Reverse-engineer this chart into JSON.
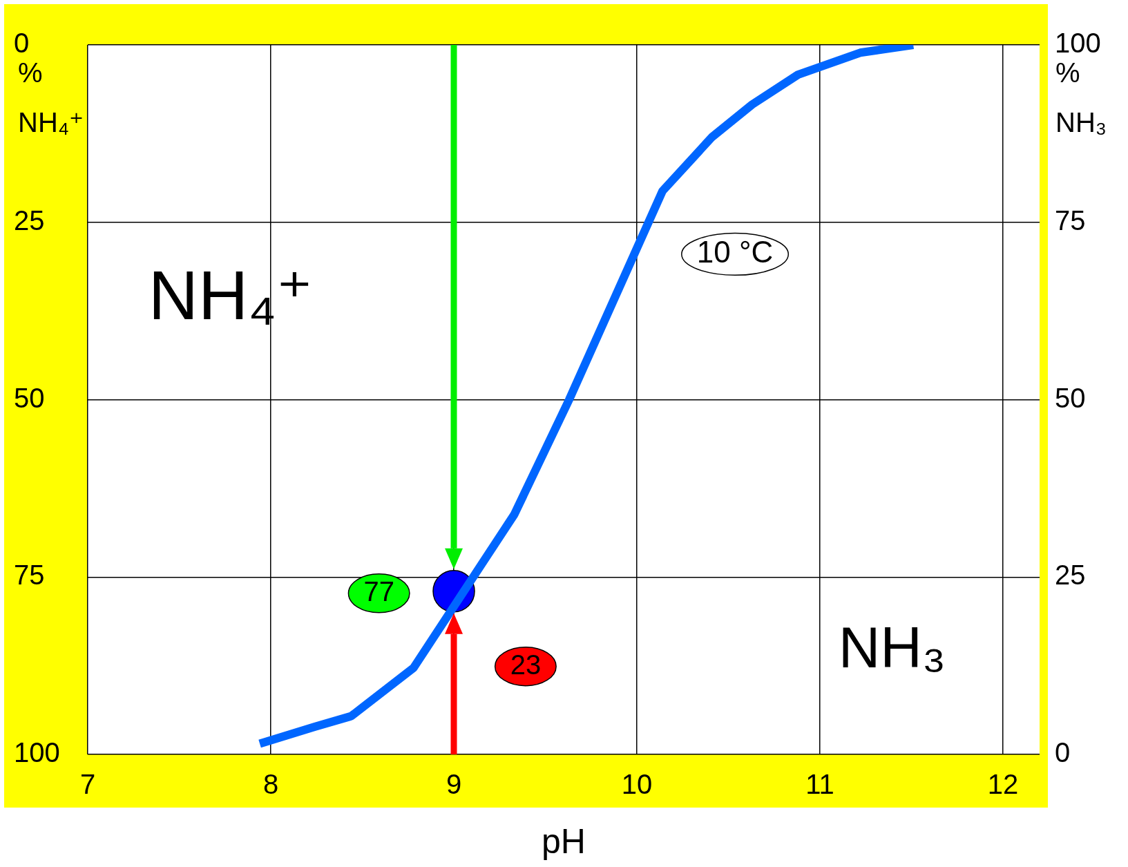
{
  "chart_data": {
    "type": "line",
    "xlabel": "pH",
    "ylabel": "% NH₄⁺",
    "y2label": "% NH₃",
    "xlim": [
      7,
      12.2
    ],
    "xticks": [
      7,
      8,
      9,
      10,
      11,
      12
    ],
    "ylim": [
      100,
      0
    ],
    "yticks": [
      0,
      25,
      50,
      75,
      100
    ],
    "y2lim": [
      0,
      100
    ],
    "y2ticks": [
      0,
      25,
      50,
      75,
      100
    ],
    "grid": true,
    "legend": false,
    "series": [
      {
        "axis": "y2",
        "color": "#0066ff",
        "x": [
          7.94,
          8.24,
          8.44,
          8.78,
          9.33,
          9.63,
          10.14,
          10.41,
          10.63,
          10.88,
          11.22,
          11.51
        ],
        "values": [
          1.5,
          3.9,
          5.4,
          12.2,
          33.8,
          50,
          79.4,
          87,
          91.6,
          95.8,
          98.9,
          100
        ]
      },
      {
        "type": "scatter",
        "axis": "y2",
        "color": "#0000ff",
        "marker": "circle",
        "x": [
          9
        ],
        "values": [
          23
        ]
      }
    ],
    "annotations": [
      "NH₄⁺",
      "NH₃",
      "10 °C",
      "77",
      "23"
    ]
  }
}
